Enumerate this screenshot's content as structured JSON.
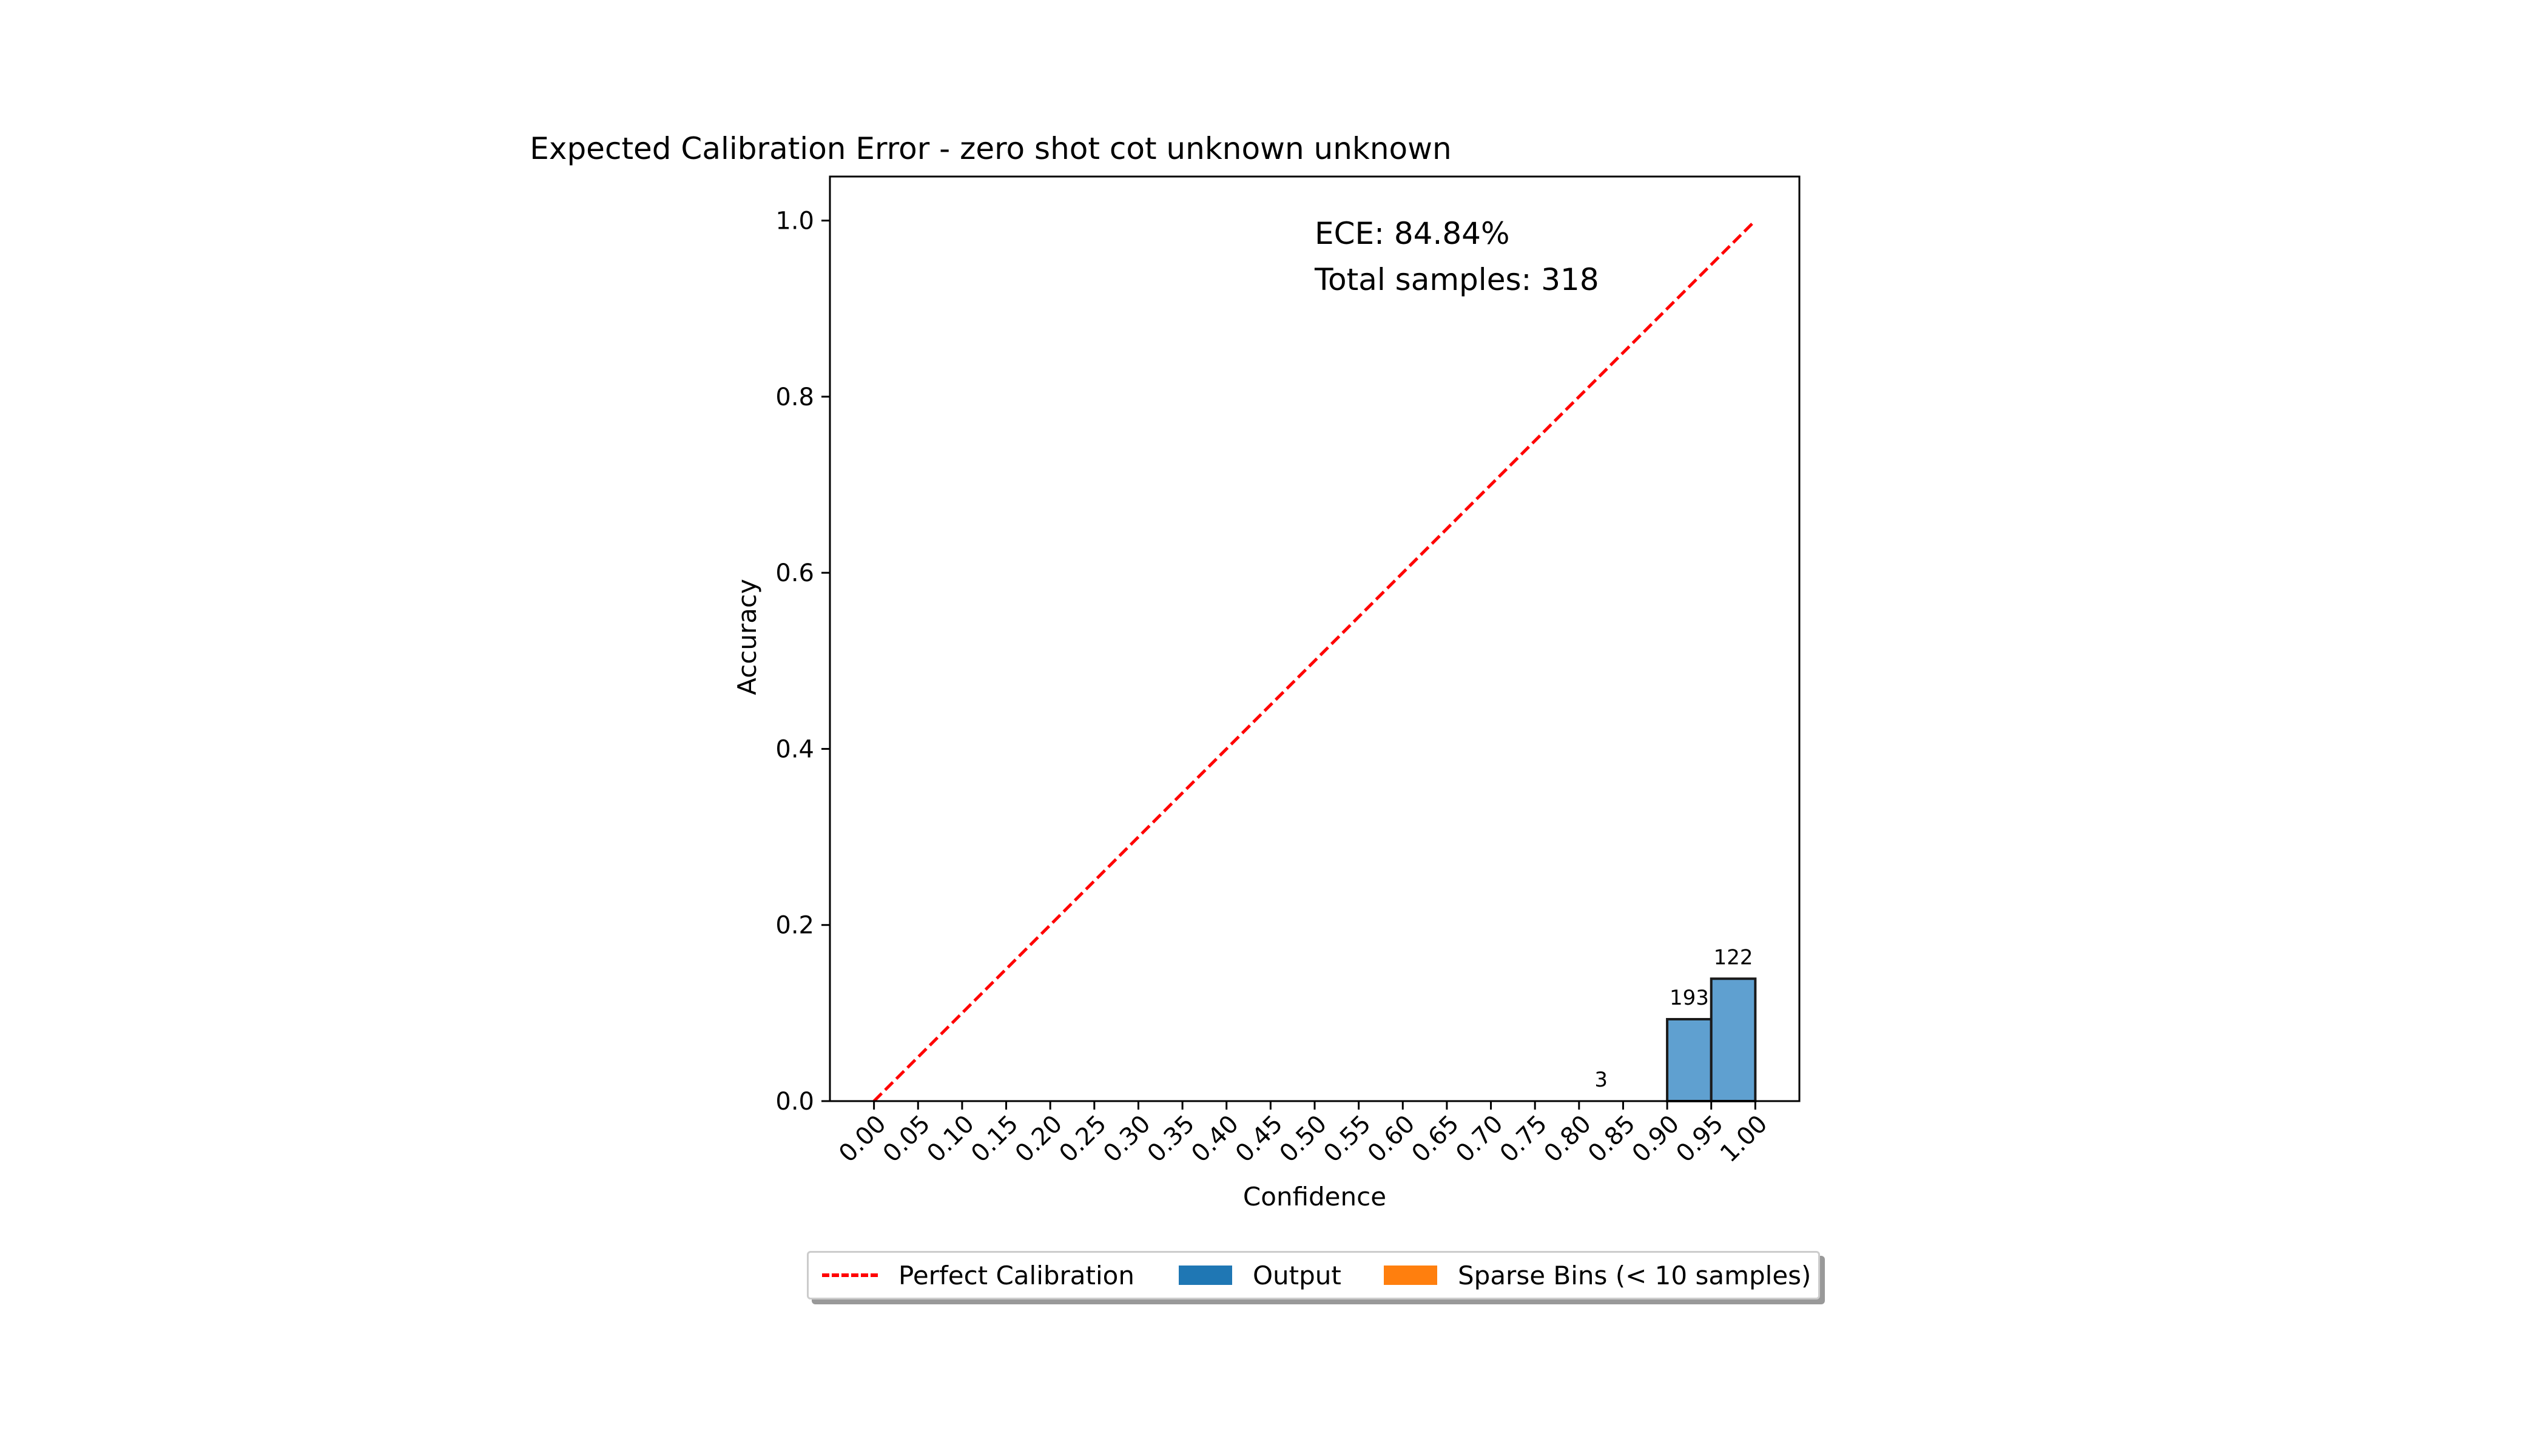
{
  "chart_data": {
    "type": "bar",
    "title": "Expected Calibration Error - zero shot cot unknown unknown",
    "xlabel": "Confidence",
    "ylabel": "Accuracy",
    "xlim": [
      -0.05,
      1.05
    ],
    "ylim": [
      0.0,
      1.05
    ],
    "x_ticks": [
      "0.00",
      "0.05",
      "0.10",
      "0.15",
      "0.20",
      "0.25",
      "0.30",
      "0.35",
      "0.40",
      "0.45",
      "0.50",
      "0.55",
      "0.60",
      "0.65",
      "0.70",
      "0.75",
      "0.80",
      "0.85",
      "0.90",
      "0.95",
      "1.00"
    ],
    "y_ticks": [
      "0.0",
      "0.2",
      "0.4",
      "0.6",
      "0.8",
      "1.0"
    ],
    "bin_width": 0.05,
    "bars": [
      {
        "bin_start": 0.8,
        "accuracy": 0.0,
        "count_label": "3"
      },
      {
        "bin_start": 0.9,
        "accuracy": 0.093,
        "count_label": "193"
      },
      {
        "bin_start": 0.95,
        "accuracy": 0.139,
        "count_label": "122"
      }
    ],
    "calibration_line": {
      "x": [
        0.0,
        1.0
      ],
      "y": [
        0.0,
        1.0
      ]
    },
    "annotations": {
      "ece": "ECE: 84.84%",
      "total": "Total samples: 318"
    },
    "legend": {
      "placement": "bottom-center",
      "perfect": "Perfect Calibration",
      "output": "Output",
      "sparse": "Sparse Bins (< 10 samples)"
    },
    "colors": {
      "bar_fill": "#5fa0d0",
      "bar_edge": "#1a1a1a",
      "output_legend": "#1f77b4",
      "sparse_legend": "#ff7f0e",
      "calibration": "#ff0000"
    }
  }
}
